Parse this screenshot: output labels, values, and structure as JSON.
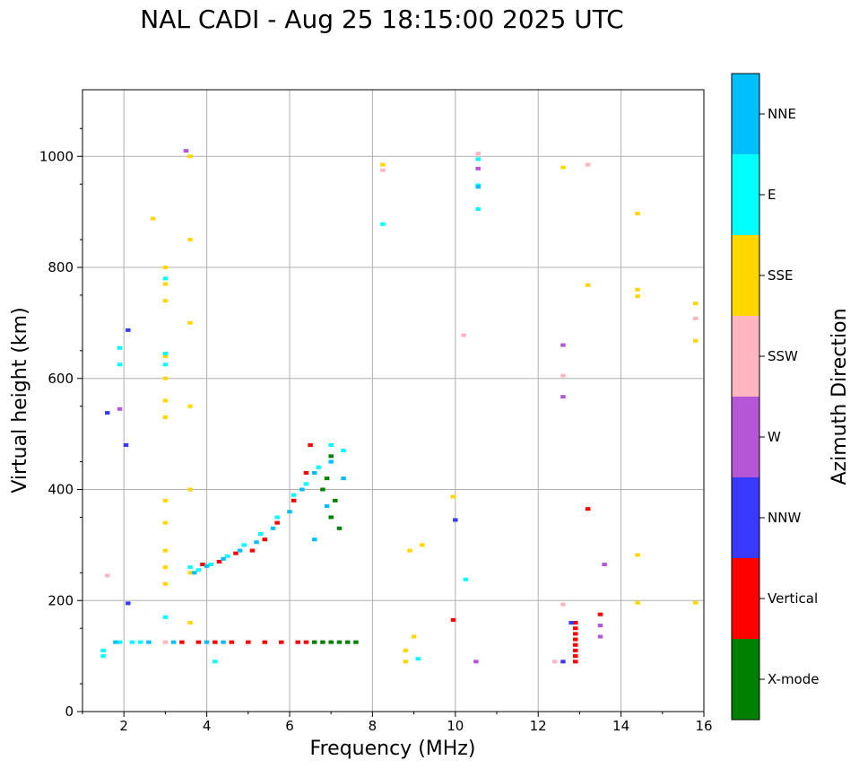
{
  "chart_data": {
    "type": "scatter",
    "title": "NAL CADI - Aug 25 18:15:00 2025 UTC",
    "xlabel": "Frequency (MHz)",
    "ylabel": "Virtual height (km)",
    "xlim": [
      1,
      16
    ],
    "ylim": [
      0,
      1120
    ],
    "xticks": [
      "2",
      "4",
      "6",
      "8",
      "10",
      "12",
      "14",
      "16"
    ],
    "yticks": [
      "0",
      "200",
      "400",
      "600",
      "800",
      "1000"
    ],
    "grid": true,
    "colorbar": {
      "label": "Azimuth Direction",
      "categories": [
        {
          "name": "X-mode",
          "color": "#008000"
        },
        {
          "name": "Vertical",
          "color": "#ff0000"
        },
        {
          "name": "NNW",
          "color": "#3a3aff"
        },
        {
          "name": "W",
          "color": "#b556d6"
        },
        {
          "name": "SSW",
          "color": "#ffb6c1"
        },
        {
          "name": "SSE",
          "color": "#ffd700"
        },
        {
          "name": "E",
          "color": "#00ffff"
        },
        {
          "name": "NNE",
          "color": "#00bfff"
        }
      ]
    },
    "series": [
      {
        "name": "X-mode",
        "points": [
          [
            6.6,
            125
          ],
          [
            6.8,
            125
          ],
          [
            7.0,
            125
          ],
          [
            7.2,
            125
          ],
          [
            7.4,
            125
          ],
          [
            7.6,
            125
          ],
          [
            7.0,
            350
          ],
          [
            7.1,
            380
          ],
          [
            6.9,
            420
          ],
          [
            7.0,
            460
          ],
          [
            6.8,
            400
          ],
          [
            7.2,
            330
          ]
        ]
      },
      {
        "name": "Vertical",
        "points": [
          [
            3.4,
            125
          ],
          [
            3.8,
            125
          ],
          [
            4.2,
            125
          ],
          [
            4.6,
            125
          ],
          [
            5.0,
            125
          ],
          [
            5.4,
            125
          ],
          [
            5.8,
            125
          ],
          [
            6.2,
            125
          ],
          [
            6.4,
            125
          ],
          [
            3.9,
            265
          ],
          [
            4.3,
            270
          ],
          [
            4.7,
            285
          ],
          [
            5.1,
            290
          ],
          [
            5.4,
            310
          ],
          [
            5.7,
            340
          ],
          [
            6.1,
            380
          ],
          [
            6.4,
            430
          ],
          [
            6.5,
            480
          ],
          [
            12.9,
            90
          ],
          [
            12.9,
            100
          ],
          [
            12.9,
            110
          ],
          [
            12.9,
            120
          ],
          [
            12.9,
            130
          ],
          [
            12.9,
            140
          ],
          [
            12.9,
            150
          ],
          [
            12.9,
            160
          ],
          [
            9.95,
            165
          ],
          [
            13.5,
            175
          ],
          [
            13.2,
            365
          ]
        ]
      },
      {
        "name": "NNW",
        "points": [
          [
            12.6,
            90
          ],
          [
            12.8,
            160
          ],
          [
            10,
            345
          ],
          [
            2.05,
            480
          ],
          [
            2.1,
            195
          ],
          [
            1.6,
            538
          ],
          [
            2.1,
            687
          ]
        ]
      },
      {
        "name": "W",
        "points": [
          [
            13.5,
            135
          ],
          [
            13.5,
            155
          ],
          [
            13.6,
            265
          ],
          [
            12.6,
            567
          ],
          [
            12.6,
            660
          ],
          [
            1.9,
            545
          ],
          [
            10.5,
            90
          ],
          [
            3.5,
            1010
          ],
          [
            10.55,
            978
          ]
        ]
      },
      {
        "name": "SSW",
        "points": [
          [
            12.4,
            90
          ],
          [
            12.6,
            193
          ],
          [
            12.6,
            605
          ],
          [
            13.2,
            985
          ],
          [
            15.8,
            708
          ],
          [
            10.2,
            678
          ],
          [
            3.0,
            125
          ],
          [
            1.6,
            245
          ],
          [
            10.55,
            1005
          ],
          [
            8.25,
            975
          ]
        ]
      },
      {
        "name": "SSE",
        "points": [
          [
            3.0,
            230
          ],
          [
            3.0,
            260
          ],
          [
            3.0,
            290
          ],
          [
            3.0,
            340
          ],
          [
            3.0,
            380
          ],
          [
            3.0,
            530
          ],
          [
            3.0,
            560
          ],
          [
            3.0,
            600
          ],
          [
            3.0,
            640
          ],
          [
            3.0,
            740
          ],
          [
            3.0,
            770
          ],
          [
            3.0,
            800
          ],
          [
            3.6,
            160
          ],
          [
            3.6,
            250
          ],
          [
            3.6,
            400
          ],
          [
            3.6,
            550
          ],
          [
            3.6,
            700
          ],
          [
            3.6,
            850
          ],
          [
            3.6,
            1000
          ],
          [
            8.8,
            90
          ],
          [
            8.8,
            110
          ],
          [
            9.0,
            135
          ],
          [
            9.2,
            300
          ],
          [
            8.9,
            290
          ],
          [
            9.95,
            387
          ],
          [
            12.6,
            980
          ],
          [
            13.2,
            768
          ],
          [
            14.4,
            760
          ],
          [
            14.4,
            748
          ],
          [
            14.4,
            897
          ],
          [
            14.4,
            282
          ],
          [
            14.4,
            196
          ],
          [
            15.8,
            735
          ],
          [
            15.8,
            668
          ],
          [
            15.8,
            196
          ],
          [
            8.25,
            985
          ],
          [
            2.7,
            888
          ]
        ]
      },
      {
        "name": "E",
        "points": [
          [
            1.5,
            100
          ],
          [
            1.5,
            110
          ],
          [
            1.9,
            125
          ],
          [
            2.2,
            125
          ],
          [
            2.4,
            125
          ],
          [
            3.0,
            170
          ],
          [
            3.0,
            625
          ],
          [
            3.0,
            645
          ],
          [
            3.0,
            780
          ],
          [
            3.6,
            260
          ],
          [
            3.8,
            255
          ],
          [
            4.1,
            265
          ],
          [
            4.5,
            280
          ],
          [
            4.9,
            300
          ],
          [
            5.3,
            320
          ],
          [
            5.7,
            350
          ],
          [
            6.1,
            390
          ],
          [
            6.4,
            410
          ],
          [
            6.7,
            440
          ],
          [
            7.0,
            480
          ],
          [
            7.3,
            470
          ],
          [
            4.2,
            90
          ],
          [
            9.1,
            95
          ],
          [
            10.25,
            238
          ],
          [
            10.55,
            905
          ],
          [
            10.55,
            948
          ],
          [
            10.55,
            995
          ],
          [
            8.25,
            878
          ],
          [
            1.9,
            625
          ],
          [
            1.9,
            655
          ]
        ]
      },
      {
        "name": "NNE",
        "points": [
          [
            1.8,
            125
          ],
          [
            2.6,
            125
          ],
          [
            3.2,
            125
          ],
          [
            4.0,
            125
          ],
          [
            4.4,
            125
          ],
          [
            3.7,
            250
          ],
          [
            4.0,
            262
          ],
          [
            4.4,
            275
          ],
          [
            4.8,
            290
          ],
          [
            5.2,
            305
          ],
          [
            5.6,
            330
          ],
          [
            6.0,
            360
          ],
          [
            6.3,
            400
          ],
          [
            6.6,
            430
          ],
          [
            7.0,
            450
          ],
          [
            7.3,
            420
          ],
          [
            6.9,
            370
          ],
          [
            6.6,
            310
          ],
          [
            10.55,
            945
          ]
        ]
      }
    ]
  }
}
